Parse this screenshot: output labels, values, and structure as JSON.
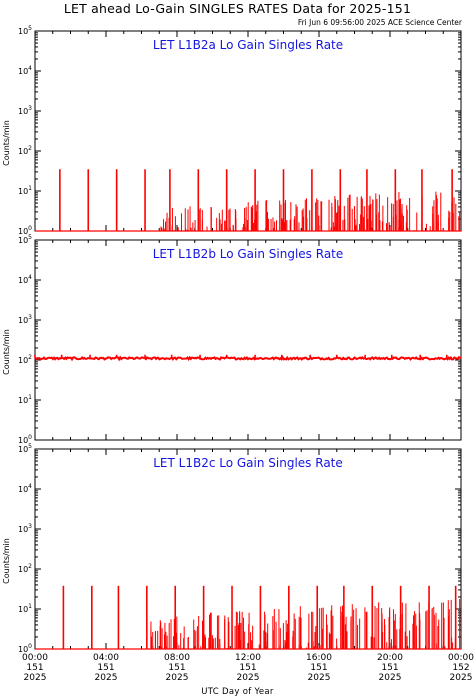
{
  "title": "LET ahead Lo-Gain SINGLES RATES Data for 2025-151",
  "timestamp": "Fri Jun  6 09:56:00 2025 ACE Science Center",
  "x_axis_title": "UTC Day of Year",
  "colors": {
    "data": "#ff0000",
    "panel_title": "#1515e0",
    "axes": "#000000"
  },
  "chart_data": [
    {
      "type": "line",
      "title": "LET L1B2a Lo Gain Singles Rate",
      "ylabel": "Counts/min",
      "yscale": "log",
      "ylim": [
        1,
        100000
      ],
      "xlim": [
        0,
        24
      ],
      "baseline": 1,
      "spike_value": 35,
      "spikes": [
        1.4,
        3.0,
        4.6,
        6.2,
        7.6,
        9.2,
        10.8,
        12.4,
        14.0,
        15.6,
        17.2,
        18.7,
        20.3,
        21.8,
        23.5
      ],
      "noise_start": 7.0,
      "noise_max": 10
    },
    {
      "type": "line",
      "title": "LET L1B2b Lo Gain Singles Rate",
      "ylabel": "Counts/min",
      "yscale": "log",
      "ylim": [
        1,
        100000
      ],
      "xlim": [
        0,
        24
      ],
      "baseline": 110,
      "spike_value": 135,
      "spikes": [
        0.0,
        1.5,
        3.1,
        4.6,
        6.2,
        7.7,
        9.3,
        10.8,
        12.4,
        13.9,
        15.5,
        17.0,
        18.6,
        20.1,
        21.7,
        23.2
      ],
      "noise_start": 0,
      "noise_max": 120
    },
    {
      "type": "line",
      "title": "LET L1B2c Lo Gain Singles Rate",
      "ylabel": "Counts/min",
      "yscale": "log",
      "ylim": [
        1,
        100000
      ],
      "xlim": [
        0,
        24
      ],
      "baseline": 1,
      "spike_value": 38,
      "spikes": [
        1.6,
        3.2,
        4.7,
        6.3,
        7.9,
        9.5,
        11.1,
        12.7,
        14.3,
        15.9,
        17.4,
        19.0,
        20.6,
        22.2,
        23.7
      ],
      "noise_start": 6.5,
      "noise_max": 18
    }
  ],
  "x_ticks": [
    {
      "time": "00:00",
      "doy": "151",
      "year": "2025",
      "hour": 0
    },
    {
      "time": "04:00",
      "doy": "151",
      "year": "2025",
      "hour": 4
    },
    {
      "time": "08:00",
      "doy": "151",
      "year": "2025",
      "hour": 8
    },
    {
      "time": "12:00",
      "doy": "151",
      "year": "2025",
      "hour": 12
    },
    {
      "time": "16:00",
      "doy": "151",
      "year": "2025",
      "hour": 16
    },
    {
      "time": "20:00",
      "doy": "151",
      "year": "2025",
      "hour": 20
    },
    {
      "time": "00:00",
      "doy": "152",
      "year": "2025",
      "hour": 24
    }
  ],
  "y_ticks": [
    "10",
    "10",
    "10",
    "10",
    "10",
    "10"
  ],
  "y_tick_exponents": [
    "0",
    "1",
    "2",
    "3",
    "4",
    "5"
  ]
}
